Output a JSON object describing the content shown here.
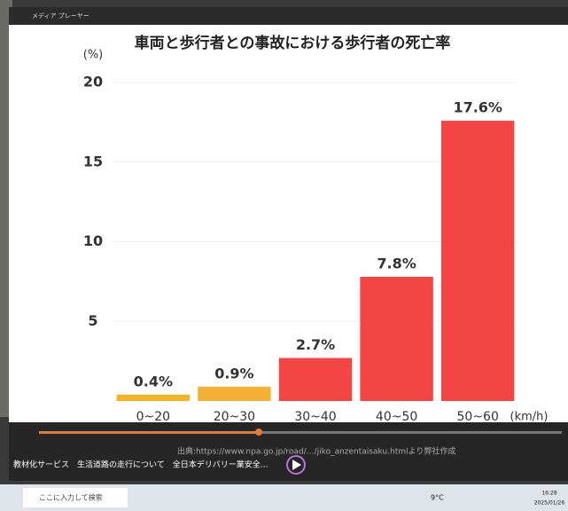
{
  "ui": {
    "window_title": "メディア プレーヤー",
    "caption": "教材化サービス　生活道路の走行について　全日本デリバリー業安全…",
    "source": "出典:https://www.npa.go.jp/road/…/jiko_anzentaisaku.htmlより弊社作成",
    "search": "ここに入力して検索",
    "weather": "9°C",
    "clock": "16:28",
    "date": "2025/01/26"
  },
  "chart_data": {
    "type": "bar",
    "title": "車両と歩行者との事故における歩行者の死亡率",
    "y_unit": "(%)",
    "x_unit": "(km/h)",
    "categories": [
      "0~20",
      "20~30",
      "30~40",
      "40~50",
      "50~60"
    ],
    "values": [
      0.4,
      0.9,
      2.7,
      7.8,
      17.6
    ],
    "value_labels": [
      "0.4%",
      "0.9%",
      "2.7%",
      "7.8%",
      "17.6%"
    ],
    "colors": [
      "#f5b324",
      "#f5b035",
      "#f44545",
      "#f44545",
      "#f44545"
    ],
    "ylim": [
      0,
      20
    ],
    "yticks": [
      5,
      10,
      15,
      20
    ],
    "grid": true
  }
}
